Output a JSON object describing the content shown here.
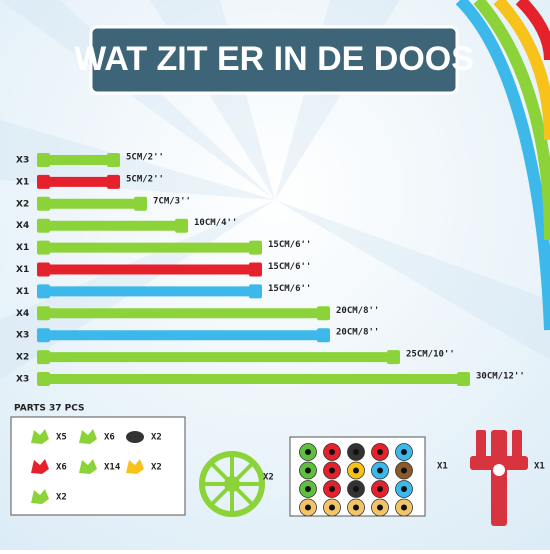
{
  "header": {
    "title": "WAT ZIT ER IN DE DOOS"
  },
  "rods": [
    {
      "qty": "X3",
      "label": "5CM/2''",
      "color": "#8cd33a"
    },
    {
      "qty": "X1",
      "label": "5CM/2''",
      "color": "#e5222c"
    },
    {
      "qty": "X2",
      "label": "7CM/3''",
      "color": "#8cd33a"
    },
    {
      "qty": "X4",
      "label": "10CM/4''",
      "color": "#8cd33a"
    },
    {
      "qty": "X1",
      "label": "15CM/6''",
      "color": "#8cd33a"
    },
    {
      "qty": "X1",
      "label": "15CM/6''",
      "color": "#e5222c"
    },
    {
      "qty": "X1",
      "label": "15CM/6''",
      "color": "#3cb8ea"
    },
    {
      "qty": "X4",
      "label": "20CM/8''",
      "color": "#8cd33a"
    },
    {
      "qty": "X3",
      "label": "20CM/8''",
      "color": "#3cb8ea"
    },
    {
      "qty": "X2",
      "label": "25CM/10''",
      "color": "#8cd33a"
    },
    {
      "qty": "X3",
      "label": "30CM/12''",
      "color": "#8cd33a"
    }
  ],
  "parts": {
    "title": "PARTS  37 PCS",
    "items": [
      {
        "qty": "X5",
        "color": "#8cd33a"
      },
      {
        "qty": "X6",
        "color": "#8cd33a"
      },
      {
        "qty": "X2",
        "color": "#333333"
      },
      {
        "qty": "X6",
        "color": "#e5222c"
      },
      {
        "qty": "X14",
        "color": "#8cd33a"
      },
      {
        "qty": "X2",
        "color": "#f7c21a"
      },
      {
        "qty": "X2",
        "color": "#8cd33a"
      }
    ]
  },
  "wheel": {
    "qty": "X2"
  },
  "eyes": {
    "qty": "X1"
  },
  "figure": {
    "qty": "X1"
  }
}
